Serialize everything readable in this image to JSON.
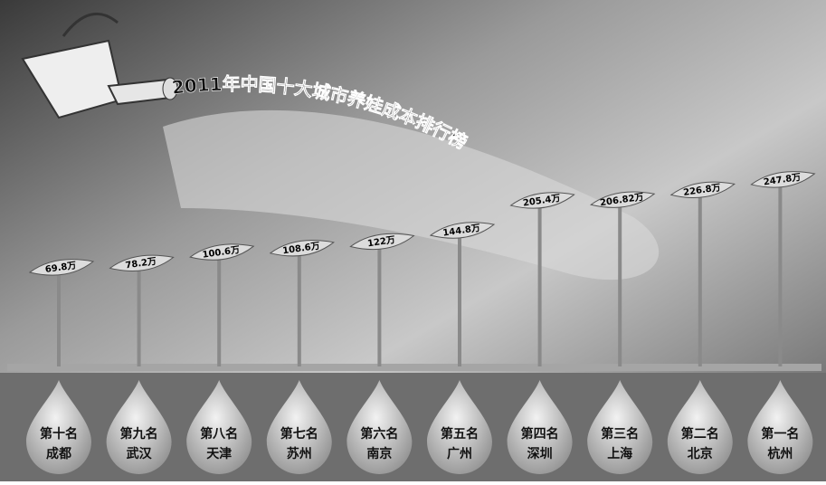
{
  "chart_data": {
    "type": "sprout",
    "title": "2011年中国十大城市养娃成本排行榜",
    "ranks": [
      "第十名",
      "第九名",
      "第八名",
      "第七名",
      "第六名",
      "第五名",
      "第四名",
      "第三名",
      "第二名",
      "第一名"
    ],
    "categories": [
      "成都",
      "武汉",
      "天津",
      "苏州",
      "南京",
      "广州",
      "深圳",
      "上海",
      "北京",
      "杭州"
    ],
    "values": [
      69.8,
      78.2,
      100.6,
      108.6,
      122,
      144.8,
      205.4,
      206.82,
      226.8,
      247.8
    ],
    "value_labels": [
      "69.8万",
      "78.2万",
      "100.6万",
      "108.6万",
      "122万",
      "144.8万",
      "205.4万",
      "206.82万",
      "226.8万",
      "247.8万"
    ],
    "color": "#8a8a8a"
  }
}
